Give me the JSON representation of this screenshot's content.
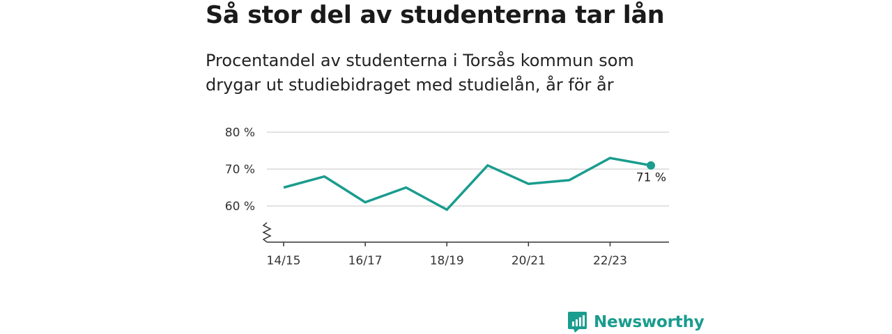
{
  "title": "Så stor del av studenterna tar lån",
  "subtitle": "Procentandel av studenterna i Torsås kommun som drygar ut studiebidraget med studielån, år för år",
  "brand": {
    "name": "Newsworthy",
    "icon": "newsworthy-logo-icon"
  },
  "colors": {
    "line": "#1a9c8e",
    "grid": "#d9d9d9",
    "axis": "#333333",
    "brand": "#1a9c8e"
  },
  "chart_data": {
    "type": "line",
    "x": [
      "14/15",
      "15/16",
      "16/17",
      "17/18",
      "18/19",
      "19/20",
      "20/21",
      "21/22",
      "22/23",
      "23/24"
    ],
    "values": [
      65,
      68,
      61,
      65,
      59,
      71,
      66,
      67,
      73,
      71
    ],
    "x_tick_labels": [
      "14/15",
      "16/17",
      "18/19",
      "20/21",
      "22/23"
    ],
    "y_ticks": [
      60,
      70,
      80
    ],
    "y_tick_labels": [
      "60 %",
      "70 %",
      "80 %"
    ],
    "ylim": [
      50,
      80
    ],
    "y_axis_break": true,
    "grid": true,
    "end_label": "71 %"
  }
}
